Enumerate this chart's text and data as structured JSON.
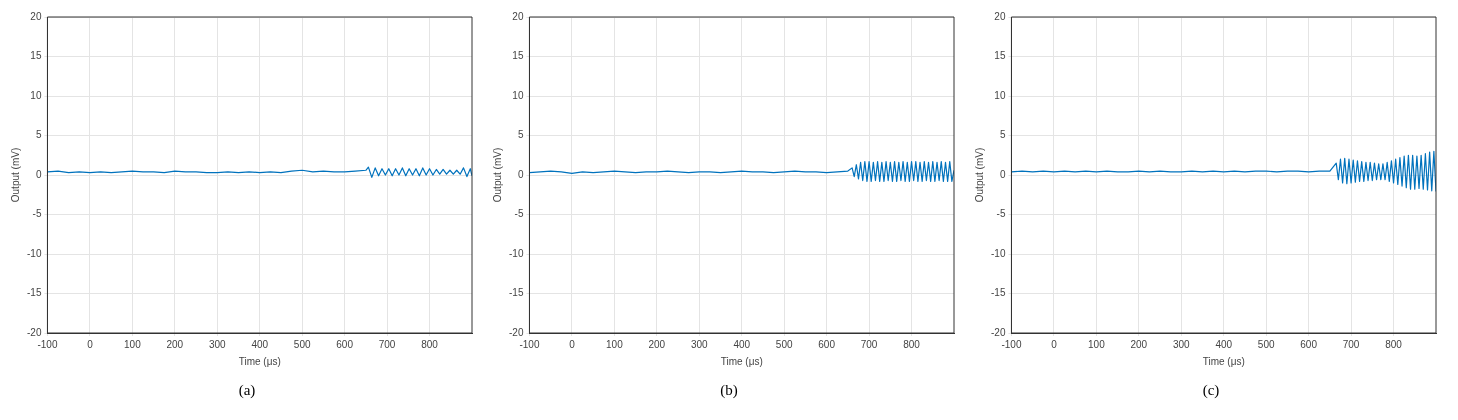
{
  "chart_data": [
    {
      "type": "line",
      "xlabel": "Time (μs)",
      "ylabel": "Output (mV)",
      "annotations": [
        "(a)"
      ],
      "xlim": [
        -100,
        900
      ],
      "xticks": [
        -100,
        0,
        100,
        200,
        300,
        400,
        500,
        600,
        700,
        800
      ],
      "ylim": [
        -20,
        20
      ],
      "yticks": [
        -20,
        -15,
        -10,
        -5,
        0,
        5,
        10,
        15,
        20
      ],
      "grid": true,
      "marker": "none",
      "series": [
        {
          "color": "#0072bd",
          "x": [
            -100,
            -75,
            -50,
            -25,
            0,
            25,
            50,
            75,
            100,
            125,
            150,
            175,
            200,
            225,
            250,
            275,
            300,
            325,
            350,
            375,
            400,
            425,
            450,
            475,
            500,
            525,
            550,
            575,
            600,
            625,
            650,
            656,
            664,
            672,
            680,
            688,
            696,
            704,
            712,
            720,
            728,
            736,
            744,
            752,
            760,
            768,
            776,
            784,
            792,
            800,
            808,
            816,
            824,
            832,
            840,
            848,
            856,
            864,
            872,
            880,
            888,
            896,
            900
          ],
          "values": [
            0.4,
            0.5,
            0.3,
            0.4,
            0.3,
            0.4,
            0.3,
            0.4,
            0.5,
            0.4,
            0.4,
            0.3,
            0.5,
            0.4,
            0.4,
            0.3,
            0.3,
            0.4,
            0.3,
            0.4,
            0.3,
            0.4,
            0.3,
            0.5,
            0.6,
            0.4,
            0.5,
            0.4,
            0.4,
            0.5,
            0.6,
            1.0,
            -0.3,
            0.9,
            -0.1,
            0.8,
            0.0,
            0.8,
            -0.1,
            0.8,
            0.0,
            0.9,
            -0.1,
            0.8,
            0.0,
            0.8,
            -0.1,
            0.9,
            0.0,
            0.8,
            0.0,
            0.7,
            0.1,
            0.7,
            0.1,
            0.6,
            0.1,
            0.6,
            0.1,
            0.9,
            -0.2,
            0.8,
            -0.1
          ]
        }
      ]
    },
    {
      "type": "line",
      "xlabel": "Time (μs)",
      "ylabel": "Output (mV)",
      "annotations": [
        "(b)"
      ],
      "xlim": [
        -100,
        900
      ],
      "xticks": [
        -100,
        0,
        100,
        200,
        300,
        400,
        500,
        600,
        700,
        800
      ],
      "ylim": [
        -20,
        20
      ],
      "yticks": [
        -20,
        -15,
        -10,
        -5,
        0,
        5,
        10,
        15,
        20
      ],
      "grid": true,
      "marker": "none",
      "series": [
        {
          "color": "#0072bd",
          "x": [
            -100,
            -75,
            -50,
            -25,
            0,
            25,
            50,
            75,
            100,
            125,
            150,
            175,
            200,
            225,
            250,
            275,
            300,
            325,
            350,
            375,
            400,
            425,
            450,
            475,
            500,
            525,
            550,
            575,
            600,
            625,
            650,
            660,
            665,
            670,
            675,
            680,
            685,
            690,
            695,
            700,
            705,
            710,
            715,
            720,
            725,
            730,
            735,
            740,
            745,
            750,
            755,
            760,
            765,
            770,
            775,
            780,
            785,
            790,
            795,
            800,
            805,
            810,
            815,
            820,
            825,
            830,
            835,
            840,
            845,
            850,
            855,
            860,
            865,
            870,
            875,
            880,
            885,
            890,
            895,
            900
          ],
          "values": [
            0.3,
            0.4,
            0.5,
            0.4,
            0.2,
            0.4,
            0.3,
            0.4,
            0.5,
            0.4,
            0.3,
            0.4,
            0.4,
            0.5,
            0.4,
            0.3,
            0.4,
            0.4,
            0.3,
            0.4,
            0.5,
            0.4,
            0.4,
            0.3,
            0.4,
            0.5,
            0.4,
            0.4,
            0.3,
            0.4,
            0.5,
            0.9,
            -0.2,
            1.3,
            -0.5,
            1.6,
            -0.7,
            1.7,
            -0.8,
            1.7,
            -0.8,
            1.6,
            -0.7,
            1.7,
            -0.8,
            1.6,
            -0.8,
            1.7,
            -0.7,
            1.6,
            -0.8,
            1.7,
            -0.8,
            1.6,
            -0.7,
            1.7,
            -0.8,
            1.6,
            -0.8,
            1.7,
            -0.7,
            1.7,
            -0.8,
            1.6,
            -0.8,
            1.7,
            -0.7,
            1.6,
            -0.8,
            1.7,
            -0.8,
            1.6,
            -0.7,
            1.7,
            -0.8,
            1.6,
            -0.8,
            1.7,
            -0.8,
            0.6
          ]
        }
      ]
    },
    {
      "type": "line",
      "xlabel": "Time (μs)",
      "ylabel": "Output (mV)",
      "annotations": [
        "(c)"
      ],
      "xlim": [
        -100,
        900
      ],
      "xticks": [
        -100,
        0,
        100,
        200,
        300,
        400,
        500,
        600,
        700,
        800
      ],
      "ylim": [
        -20,
        20
      ],
      "yticks": [
        -20,
        -15,
        -10,
        -5,
        0,
        5,
        10,
        15,
        20
      ],
      "grid": true,
      "marker": "none",
      "series": [
        {
          "color": "#0072bd",
          "x": [
            -100,
            -75,
            -50,
            -25,
            0,
            25,
            50,
            75,
            100,
            125,
            150,
            175,
            200,
            225,
            250,
            275,
            300,
            325,
            350,
            375,
            400,
            425,
            450,
            475,
            500,
            525,
            550,
            575,
            600,
            625,
            650,
            665,
            670,
            675,
            680,
            685,
            690,
            695,
            700,
            705,
            710,
            715,
            720,
            725,
            730,
            735,
            740,
            745,
            750,
            755,
            760,
            765,
            770,
            775,
            780,
            785,
            790,
            795,
            800,
            805,
            810,
            815,
            820,
            825,
            830,
            835,
            840,
            845,
            850,
            855,
            860,
            865,
            870,
            875,
            880,
            885,
            890,
            895,
            900
          ],
          "values": [
            0.4,
            0.5,
            0.4,
            0.5,
            0.4,
            0.5,
            0.4,
            0.5,
            0.4,
            0.5,
            0.4,
            0.4,
            0.5,
            0.4,
            0.5,
            0.4,
            0.4,
            0.5,
            0.4,
            0.5,
            0.4,
            0.5,
            0.4,
            0.5,
            0.5,
            0.4,
            0.5,
            0.5,
            0.4,
            0.5,
            0.5,
            1.5,
            -0.6,
            2.0,
            -1.0,
            2.1,
            -1.1,
            2.0,
            -1.0,
            1.9,
            -0.9,
            1.8,
            -0.8,
            1.7,
            -0.8,
            1.6,
            -0.7,
            1.6,
            -0.7,
            1.5,
            -0.6,
            1.4,
            -0.6,
            1.4,
            -0.6,
            1.6,
            -0.8,
            1.8,
            -1.0,
            2.0,
            -1.2,
            2.2,
            -1.4,
            2.4,
            -1.6,
            2.5,
            -1.8,
            2.5,
            -1.8,
            2.4,
            -1.7,
            2.5,
            -1.8,
            2.7,
            -1.9,
            2.9,
            -2.0,
            3.0,
            -2.1
          ]
        }
      ]
    }
  ]
}
